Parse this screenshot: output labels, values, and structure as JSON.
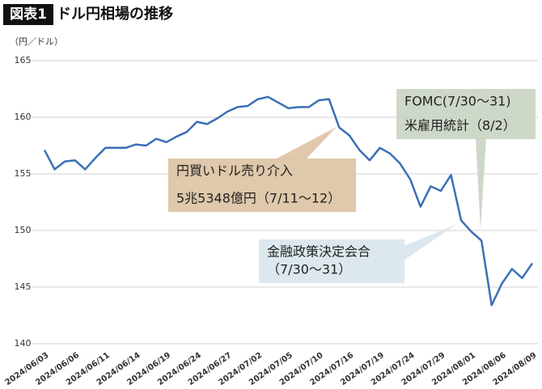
{
  "chart_data": {
    "type": "line",
    "title_tag": "図表1",
    "title": "ドル円相場の推移",
    "y_label": "（円／ドル）",
    "categories": [
      "2024/06/03",
      null,
      null,
      "2024/06/06",
      null,
      null,
      "2024/06/11",
      null,
      null,
      "2024/06/14",
      null,
      null,
      "2024/06/19",
      null,
      null,
      "2024/06/24",
      null,
      null,
      "2024/06/27",
      null,
      null,
      "2024/07/02",
      null,
      null,
      "2024/07/05",
      null,
      null,
      "2024/07/10",
      null,
      null,
      "2024/07/16",
      null,
      null,
      "2024/07/19",
      null,
      null,
      "2024/07/24",
      null,
      null,
      "2024/07/29",
      null,
      null,
      "2024/08/01",
      null,
      null,
      "2024/08/06",
      null,
      null,
      "2024/08/09"
    ],
    "series": [
      {
        "color": "#3b6fb6",
        "values": [
          157.1,
          155.4,
          156.1,
          156.2,
          155.4,
          156.4,
          157.3,
          157.3,
          157.3,
          157.6,
          157.5,
          158.1,
          157.8,
          158.3,
          158.7,
          159.6,
          159.4,
          159.9,
          160.5,
          160.9,
          161.0,
          161.6,
          161.8,
          161.3,
          160.8,
          160.9,
          160.9,
          161.5,
          161.6,
          159.1,
          158.4,
          157.1,
          156.2,
          157.3,
          156.8,
          155.9,
          154.5,
          152.1,
          153.9,
          153.5,
          154.9,
          150.9,
          149.9,
          149.1,
          143.4,
          145.3,
          146.6,
          145.8,
          147.1
        ]
      }
    ],
    "ylim": [
      140,
      165
    ],
    "yticks": [
      140,
      145,
      150,
      155,
      160,
      165
    ],
    "grid": true,
    "annotations": [
      {
        "lines": [
          "円買いドル売り介入",
          "5兆5348億円（7/11〜12）"
        ],
        "color": "#dcc2a2"
      },
      {
        "lines": [
          "FOMC(7/30〜31)",
          "米雇用統計（8/2）"
        ],
        "color": "#c8d4c3"
      },
      {
        "lines": [
          "金融政策決定会合",
          "（7/30〜31）"
        ],
        "color": "#d8e6ec"
      }
    ]
  }
}
